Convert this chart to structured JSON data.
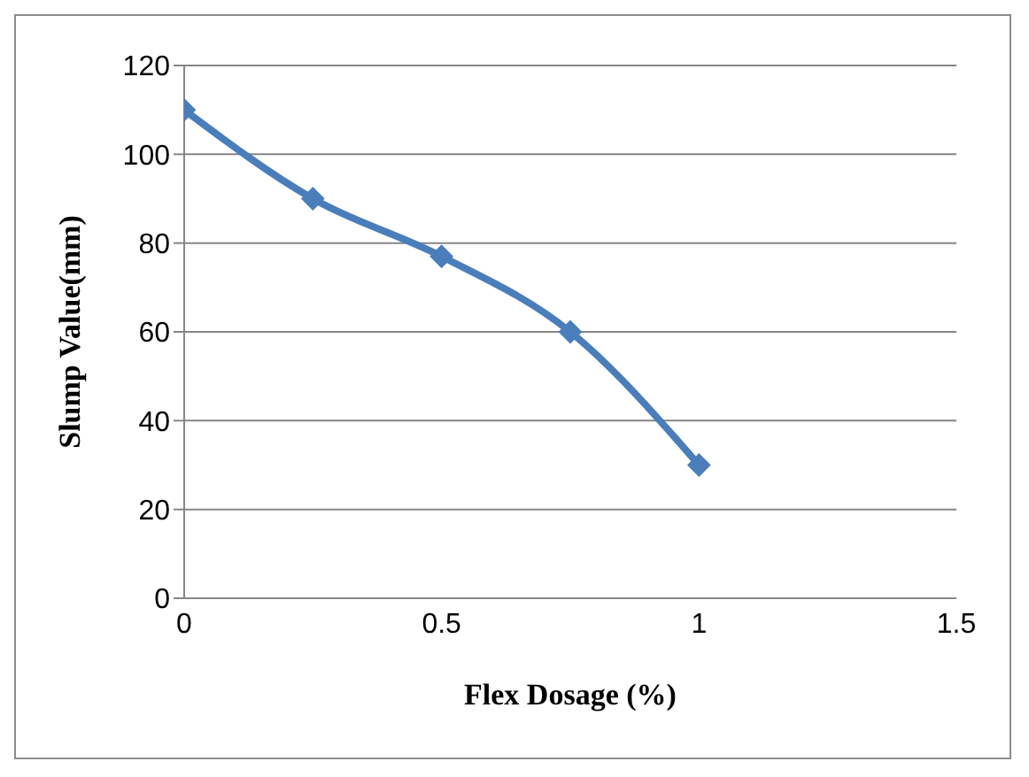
{
  "chart_data": {
    "type": "line",
    "xlabel": "Flex Dosage (%)",
    "ylabel": "Slump Value(mm)",
    "x": [
      0,
      0.25,
      0.5,
      0.75,
      1
    ],
    "series": [
      {
        "color": "#4a7ebb",
        "values": [
          110,
          90,
          77,
          60,
          30
        ]
      }
    ],
    "xlim": [
      0,
      1.5
    ],
    "xticks": [
      0,
      0.5,
      1,
      1.5
    ],
    "ylim": [
      0,
      120
    ],
    "yticks": [
      0,
      20,
      40,
      60,
      80,
      100,
      120
    ],
    "grid": "y",
    "legend": false,
    "marker": "diamond",
    "line_style": "solid"
  }
}
